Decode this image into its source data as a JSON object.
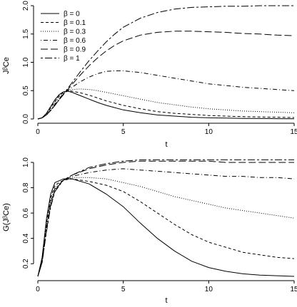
{
  "chart_data": [
    {
      "type": "line",
      "xlabel": "t",
      "ylabel": "JᵝCe",
      "xlim": [
        0,
        15
      ],
      "ylim": [
        0,
        2
      ],
      "xticks": [
        0,
        5,
        10,
        15
      ],
      "yticks": [
        0.0,
        0.5,
        1.0,
        1.5,
        2.0
      ],
      "ytick_labels": [
        "0.0",
        "0.5",
        "1.0",
        "1.5",
        "2.0"
      ],
      "legend_position": "top-left",
      "series": [
        {
          "name": "β = 0",
          "dash": "solid",
          "x": [
            0,
            0.25,
            0.5,
            0.75,
            1,
            1.25,
            1.5,
            1.75,
            2,
            2.5,
            3,
            3.5,
            4,
            4.5,
            5,
            6,
            7,
            8,
            9,
            10,
            11,
            12,
            13,
            14,
            15
          ],
          "y": [
            0,
            0.02,
            0.1,
            0.22,
            0.34,
            0.43,
            0.48,
            0.49,
            0.47,
            0.41,
            0.35,
            0.29,
            0.24,
            0.2,
            0.16,
            0.11,
            0.07,
            0.05,
            0.03,
            0.02,
            0.015,
            0.01,
            0.008,
            0.005,
            0.004
          ]
        },
        {
          "name": "β = 0.1",
          "dash": "dashed",
          "x": [
            0,
            0.25,
            0.5,
            0.75,
            1,
            1.25,
            1.5,
            1.75,
            2,
            2.5,
            3,
            3.5,
            4,
            4.5,
            5,
            6,
            7,
            8,
            9,
            10,
            11,
            12,
            13,
            14,
            15
          ],
          "y": [
            0,
            0.02,
            0.09,
            0.2,
            0.31,
            0.41,
            0.47,
            0.49,
            0.49,
            0.46,
            0.42,
            0.37,
            0.32,
            0.28,
            0.24,
            0.18,
            0.13,
            0.1,
            0.08,
            0.06,
            0.05,
            0.04,
            0.035,
            0.03,
            0.025
          ]
        },
        {
          "name": "β = 0.3",
          "dash": "dotted",
          "x": [
            0,
            0.25,
            0.5,
            0.75,
            1,
            1.25,
            1.5,
            1.75,
            2,
            2.5,
            3,
            3.5,
            4,
            4.5,
            5,
            6,
            7,
            8,
            9,
            10,
            11,
            12,
            13,
            14,
            15
          ],
          "y": [
            0,
            0.02,
            0.08,
            0.18,
            0.29,
            0.39,
            0.46,
            0.5,
            0.52,
            0.53,
            0.52,
            0.5,
            0.47,
            0.44,
            0.41,
            0.35,
            0.29,
            0.25,
            0.21,
            0.18,
            0.16,
            0.14,
            0.13,
            0.12,
            0.11
          ]
        },
        {
          "name": "β = 0.6",
          "dash": "dotdash",
          "x": [
            0,
            0.25,
            0.5,
            0.75,
            1,
            1.25,
            1.5,
            1.75,
            2,
            2.5,
            3,
            3.5,
            4,
            4.5,
            5,
            6,
            7,
            8,
            9,
            10,
            11,
            12,
            13,
            14,
            15
          ],
          "y": [
            0,
            0.02,
            0.07,
            0.16,
            0.26,
            0.36,
            0.44,
            0.5,
            0.56,
            0.66,
            0.74,
            0.8,
            0.84,
            0.85,
            0.85,
            0.82,
            0.77,
            0.72,
            0.67,
            0.62,
            0.59,
            0.56,
            0.54,
            0.52,
            0.5
          ]
        },
        {
          "name": "β = 0.9",
          "dash": "longdash",
          "x": [
            0,
            0.25,
            0.5,
            0.75,
            1,
            1.25,
            1.5,
            1.75,
            2,
            2.5,
            3,
            3.5,
            4,
            4.5,
            5,
            6,
            7,
            8,
            9,
            10,
            11,
            12,
            13,
            14,
            15
          ],
          "y": [
            0,
            0.02,
            0.07,
            0.15,
            0.24,
            0.34,
            0.43,
            0.52,
            0.61,
            0.78,
            0.94,
            1.08,
            1.2,
            1.3,
            1.38,
            1.48,
            1.53,
            1.55,
            1.55,
            1.54,
            1.53,
            1.51,
            1.5,
            1.48,
            1.47
          ]
        },
        {
          "name": "β = 1",
          "dash": "twodash",
          "x": [
            0,
            0.25,
            0.5,
            0.75,
            1,
            1.25,
            1.5,
            1.75,
            2,
            2.5,
            3,
            3.5,
            4,
            4.5,
            5,
            6,
            7,
            8,
            9,
            10,
            11,
            12,
            13,
            14,
            15
          ],
          "y": [
            0,
            0.02,
            0.07,
            0.15,
            0.24,
            0.34,
            0.44,
            0.54,
            0.64,
            0.84,
            1.03,
            1.2,
            1.36,
            1.5,
            1.62,
            1.78,
            1.88,
            1.94,
            1.97,
            1.98,
            1.99,
            1.99,
            2.0,
            2.0,
            2.0
          ]
        }
      ]
    },
    {
      "type": "line",
      "xlabel": "t",
      "ylabel": "G(JᵝCe)",
      "xlim": [
        0,
        15
      ],
      "ylim": [
        0.1,
        1.0
      ],
      "xticks": [
        0,
        5,
        10,
        15
      ],
      "yticks": [
        0.2,
        0.4,
        0.6,
        0.8,
        1.0
      ],
      "ytick_labels": [
        "0.2",
        "0.4",
        "0.6",
        "0.8",
        "1.0"
      ],
      "series": [
        {
          "name": "β = 0",
          "dash": "solid",
          "x": [
            0,
            0.25,
            0.5,
            0.75,
            1,
            1.5,
            2,
            3,
            4,
            5,
            6,
            7,
            8,
            9,
            10,
            11,
            12,
            13,
            14,
            15
          ],
          "y": [
            0.1,
            0.25,
            0.55,
            0.75,
            0.84,
            0.87,
            0.87,
            0.83,
            0.75,
            0.65,
            0.52,
            0.4,
            0.3,
            0.22,
            0.17,
            0.14,
            0.12,
            0.11,
            0.105,
            0.1
          ]
        },
        {
          "name": "β = 0.1",
          "dash": "dashed",
          "x": [
            0,
            0.25,
            0.5,
            0.75,
            1,
            1.5,
            2,
            3,
            4,
            5,
            6,
            7,
            8,
            9,
            10,
            11,
            12,
            13,
            14,
            15
          ],
          "y": [
            0.1,
            0.24,
            0.52,
            0.72,
            0.82,
            0.86,
            0.87,
            0.85,
            0.82,
            0.77,
            0.69,
            0.6,
            0.51,
            0.43,
            0.37,
            0.33,
            0.29,
            0.27,
            0.25,
            0.24
          ]
        },
        {
          "name": "β = 0.3",
          "dash": "dotted",
          "x": [
            0,
            0.25,
            0.5,
            0.75,
            1,
            1.5,
            2,
            3,
            4,
            5,
            6,
            7,
            8,
            9,
            10,
            11,
            12,
            13,
            14,
            15
          ],
          "y": [
            0.1,
            0.23,
            0.5,
            0.7,
            0.8,
            0.86,
            0.88,
            0.88,
            0.87,
            0.84,
            0.81,
            0.77,
            0.73,
            0.7,
            0.67,
            0.64,
            0.62,
            0.6,
            0.58,
            0.56
          ]
        },
        {
          "name": "β = 0.6",
          "dash": "dotdash",
          "x": [
            0,
            0.25,
            0.5,
            0.75,
            1,
            1.5,
            2,
            3,
            4,
            5,
            6,
            7,
            8,
            9,
            10,
            11,
            12,
            13,
            14,
            15
          ],
          "y": [
            0.1,
            0.22,
            0.48,
            0.68,
            0.79,
            0.86,
            0.89,
            0.92,
            0.94,
            0.95,
            0.94,
            0.93,
            0.92,
            0.91,
            0.9,
            0.89,
            0.89,
            0.88,
            0.88,
            0.87
          ]
        },
        {
          "name": "β = 0.9",
          "dash": "longdash",
          "x": [
            0,
            0.25,
            0.5,
            0.75,
            1,
            1.5,
            2,
            3,
            4,
            5,
            6,
            7,
            8,
            9,
            10,
            11,
            12,
            13,
            14,
            15
          ],
          "y": [
            0.1,
            0.21,
            0.46,
            0.66,
            0.78,
            0.86,
            0.9,
            0.95,
            0.98,
            1.0,
            1.01,
            1.01,
            1.01,
            1.01,
            1.01,
            1.0,
            1.0,
            1.0,
            1.0,
            1.0
          ]
        },
        {
          "name": "β = 1",
          "dash": "twodash",
          "x": [
            0,
            0.25,
            0.5,
            0.75,
            1,
            1.5,
            2,
            3,
            4,
            5,
            6,
            7,
            8,
            9,
            10,
            11,
            12,
            13,
            14,
            15
          ],
          "y": [
            0.1,
            0.21,
            0.45,
            0.65,
            0.77,
            0.86,
            0.9,
            0.96,
            0.99,
            1.01,
            1.02,
            1.02,
            1.02,
            1.02,
            1.02,
            1.02,
            1.02,
            1.02,
            1.02,
            1.02
          ]
        }
      ]
    }
  ]
}
